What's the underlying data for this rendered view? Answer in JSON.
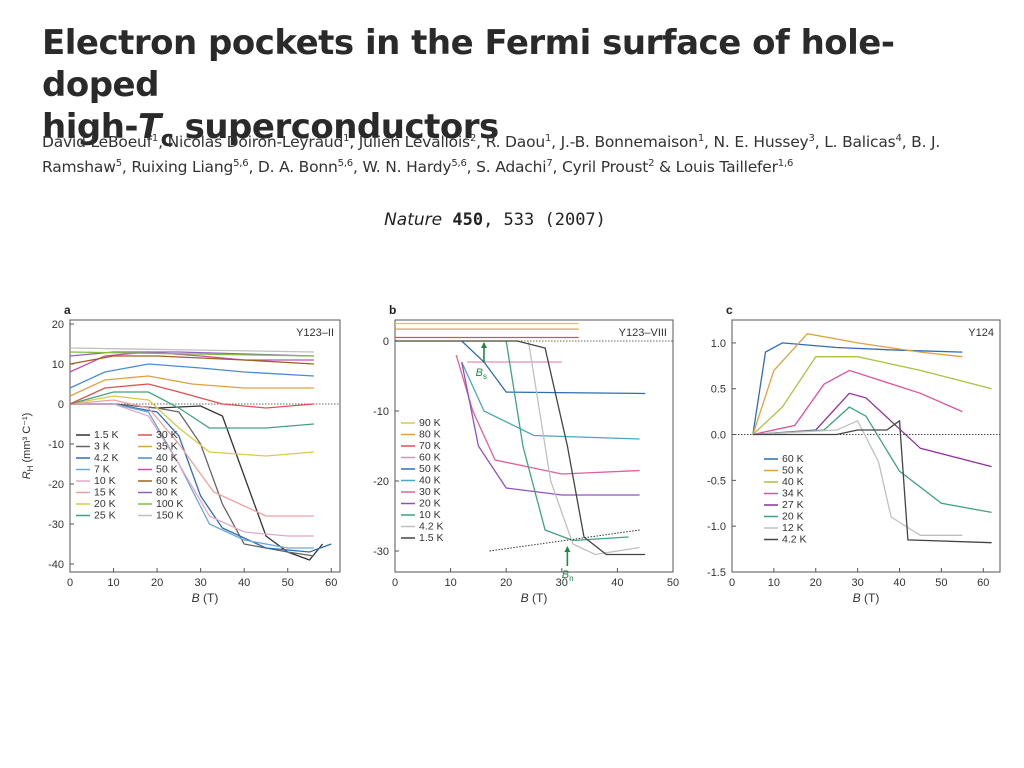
{
  "title": {
    "line1": "Electron pockets in the Fermi surface of hole-doped",
    "line2a": "high-",
    "line2_T": "T",
    "line2_c": "c",
    "line2b": " superconductors"
  },
  "authors": [
    {
      "name": "David LeBoeuf",
      "sup": "1"
    },
    {
      "name": "Nicolas Doiron-Leyraud",
      "sup": "1"
    },
    {
      "name": "Julien Levallois",
      "sup": "2"
    },
    {
      "name": "R. Daou",
      "sup": "1"
    },
    {
      "name": "J.-B. Bonnemaison",
      "sup": "1"
    },
    {
      "name": "N. E. Hussey",
      "sup": "3"
    },
    {
      "name": "L. Balicas",
      "sup": "4"
    },
    {
      "name": "B. J. Ramshaw",
      "sup": "5"
    },
    {
      "name": "Ruixing Liang",
      "sup": "5,6"
    },
    {
      "name": "D. A. Bonn",
      "sup": "5,6"
    },
    {
      "name": "W. N. Hardy",
      "sup": "5,6"
    },
    {
      "name": "S. Adachi",
      "sup": "7"
    },
    {
      "name": "Cyril Proust",
      "sup": "2"
    },
    {
      "name": "Louis Taillefer",
      "sup": "1,6"
    }
  ],
  "citation": {
    "journal": "Nature",
    "volume": "450",
    "rest": ", 533 (2007)"
  },
  "chart_data": [
    {
      "type": "line",
      "panel": "a",
      "sample": "Y123–II",
      "xlabel": "B (T)",
      "ylabel": "R_H (mm³ C⁻¹)",
      "xlim": [
        0,
        62
      ],
      "ylim": [
        -42,
        21
      ],
      "xticks": [
        0,
        10,
        20,
        30,
        40,
        50,
        60
      ],
      "yticks": [
        20,
        10,
        0,
        -10,
        -20,
        -30,
        -40
      ],
      "legend_col1": [
        "1.5 K",
        "3 K",
        "4.2 K",
        "7 K",
        "10 K",
        "15 K",
        "20 K",
        "25 K"
      ],
      "legend_col2": [
        "30 K",
        "35 K",
        "40 K",
        "50 K",
        "60 K",
        "80 K",
        "100 K",
        "150 K"
      ],
      "series": [
        {
          "name": "1.5 K",
          "color": "#333333",
          "points": [
            [
              0,
              0
            ],
            [
              10,
              0
            ],
            [
              20,
              -1
            ],
            [
              30,
              -0.5
            ],
            [
              35,
              -3
            ],
            [
              40,
              -18
            ],
            [
              45,
              -33
            ],
            [
              50,
              -37
            ],
            [
              55,
              -39
            ],
            [
              58,
              -35
            ]
          ]
        },
        {
          "name": "3 K",
          "color": "#666666",
          "points": [
            [
              0,
              0
            ],
            [
              10,
              0
            ],
            [
              20,
              -1
            ],
            [
              25,
              -2
            ],
            [
              30,
              -10
            ],
            [
              35,
              -25
            ],
            [
              40,
              -35
            ],
            [
              50,
              -37
            ],
            [
              56,
              -38
            ]
          ]
        },
        {
          "name": "4.2 K",
          "color": "#2e6db4",
          "points": [
            [
              0,
              0
            ],
            [
              10,
              0
            ],
            [
              20,
              -2
            ],
            [
              25,
              -8
            ],
            [
              30,
              -23
            ],
            [
              35,
              -31
            ],
            [
              45,
              -36
            ],
            [
              55,
              -37
            ],
            [
              60,
              -35
            ]
          ]
        },
        {
          "name": "7 K",
          "color": "#6aa8d8",
          "points": [
            [
              0,
              0
            ],
            [
              10,
              0
            ],
            [
              18,
              -2
            ],
            [
              25,
              -15
            ],
            [
              32,
              -30
            ],
            [
              40,
              -34
            ],
            [
              50,
              -36
            ],
            [
              56,
              -36
            ]
          ]
        },
        {
          "name": "10 K",
          "color": "#e3a8c8",
          "points": [
            [
              0,
              0
            ],
            [
              10,
              0
            ],
            [
              18,
              -3
            ],
            [
              25,
              -15
            ],
            [
              32,
              -28
            ],
            [
              40,
              -32
            ],
            [
              50,
              -33
            ],
            [
              56,
              -33
            ]
          ]
        },
        {
          "name": "15 K",
          "color": "#f0a0a0",
          "points": [
            [
              0,
              0
            ],
            [
              10,
              1
            ],
            [
              18,
              -1
            ],
            [
              25,
              -10
            ],
            [
              33,
              -22
            ],
            [
              45,
              -28
            ],
            [
              56,
              -28
            ]
          ]
        },
        {
          "name": "20 K",
          "color": "#d9c94a",
          "points": [
            [
              0,
              0
            ],
            [
              10,
              2
            ],
            [
              18,
              1
            ],
            [
              25,
              -6
            ],
            [
              32,
              -12
            ],
            [
              45,
              -13
            ],
            [
              56,
              -12
            ]
          ]
        },
        {
          "name": "25 K",
          "color": "#3fa37c",
          "points": [
            [
              0,
              0
            ],
            [
              10,
              3
            ],
            [
              18,
              3
            ],
            [
              25,
              -1
            ],
            [
              32,
              -6
            ],
            [
              45,
              -6
            ],
            [
              56,
              -5
            ]
          ]
        },
        {
          "name": "30 K",
          "color": "#e05050",
          "points": [
            [
              0,
              0
            ],
            [
              8,
              4
            ],
            [
              18,
              5
            ],
            [
              25,
              3
            ],
            [
              35,
              0
            ],
            [
              45,
              -1
            ],
            [
              56,
              0
            ]
          ]
        },
        {
          "name": "35 K",
          "color": "#e0a040",
          "points": [
            [
              0,
              2
            ],
            [
              8,
              6
            ],
            [
              18,
              7
            ],
            [
              28,
              5
            ],
            [
              40,
              4
            ],
            [
              56,
              4
            ]
          ]
        },
        {
          "name": "40 K",
          "color": "#4b8bd4",
          "points": [
            [
              0,
              4
            ],
            [
              8,
              8
            ],
            [
              18,
              10
            ],
            [
              30,
              9
            ],
            [
              40,
              8
            ],
            [
              56,
              7
            ]
          ]
        },
        {
          "name": "50 K",
          "color": "#c050b0",
          "points": [
            [
              0,
              8
            ],
            [
              8,
              12
            ],
            [
              18,
              13
            ],
            [
              30,
              12
            ],
            [
              40,
              11
            ],
            [
              56,
              11
            ]
          ]
        },
        {
          "name": "60 K",
          "color": "#a06020",
          "points": [
            [
              0,
              10
            ],
            [
              10,
              12
            ],
            [
              20,
              12
            ],
            [
              40,
              11
            ],
            [
              56,
              10
            ]
          ]
        },
        {
          "name": "80 K",
          "color": "#9060c0",
          "points": [
            [
              0,
              12
            ],
            [
              10,
              13
            ],
            [
              25,
              13
            ],
            [
              56,
              12
            ]
          ]
        },
        {
          "name": "100 K",
          "color": "#80c040",
          "points": [
            [
              0,
              13
            ],
            [
              56,
              12
            ]
          ]
        },
        {
          "name": "150 K",
          "color": "#c0c0c0",
          "points": [
            [
              0,
              14
            ],
            [
              56,
              13
            ]
          ]
        }
      ]
    },
    {
      "type": "line",
      "panel": "b",
      "sample": "Y123–VIII",
      "xlabel": "B (T)",
      "ylabel": "",
      "xlim": [
        0,
        50
      ],
      "ylim": [
        -33,
        3
      ],
      "xticks": [
        0,
        10,
        20,
        30,
        40,
        50
      ],
      "yticks": [
        0,
        -10,
        -20,
        -30
      ],
      "annotations": [
        "B_s",
        "B_n"
      ],
      "legend": [
        "90 K",
        "80 K",
        "70 K",
        "60 K",
        "50 K",
        "40 K",
        "30 K",
        "20 K",
        "10 K",
        "4.2 K",
        "1.5 K"
      ],
      "series": [
        {
          "name": "90 K",
          "color": "#d9c94a",
          "points": [
            [
              0,
              2.5
            ],
            [
              33,
              2.5
            ]
          ]
        },
        {
          "name": "80 K",
          "color": "#e0a040",
          "points": [
            [
              0,
              1.7
            ],
            [
              33,
              1.7
            ]
          ]
        },
        {
          "name": "70 K",
          "color": "#e05050",
          "points": [
            [
              0,
              0.5
            ],
            [
              33,
              0.5
            ]
          ]
        },
        {
          "name": "60 K",
          "color": "#e38cb8",
          "points": [
            [
              13,
              -3
            ],
            [
              30,
              -3
            ]
          ]
        },
        {
          "name": "50 K",
          "color": "#2e6db4",
          "points": [
            [
              12,
              0
            ],
            [
              16,
              -3
            ],
            [
              20,
              -7.3
            ],
            [
              45,
              -7.5
            ]
          ]
        },
        {
          "name": "40 K",
          "color": "#4aa8c0",
          "points": [
            [
              12,
              -3
            ],
            [
              16,
              -10
            ],
            [
              25,
              -13.5
            ],
            [
              44,
              -14
            ]
          ]
        },
        {
          "name": "30 K",
          "color": "#e060a0",
          "points": [
            [
              11,
              -2
            ],
            [
              14,
              -10
            ],
            [
              18,
              -17
            ],
            [
              30,
              -19
            ],
            [
              44,
              -18.5
            ]
          ]
        },
        {
          "name": "20 K",
          "color": "#9050c0",
          "points": [
            [
              12,
              -3
            ],
            [
              15,
              -15
            ],
            [
              20,
              -21
            ],
            [
              30,
              -22
            ],
            [
              44,
              -22
            ]
          ]
        },
        {
          "name": "10 K",
          "color": "#3fa37c",
          "points": [
            [
              20,
              0
            ],
            [
              23,
              -15
            ],
            [
              27,
              -27
            ],
            [
              32,
              -28.5
            ],
            [
              42,
              -28
            ]
          ]
        },
        {
          "name": "4.2 K",
          "color": "#c0c0c0",
          "points": [
            [
              24,
              0
            ],
            [
              28,
              -20
            ],
            [
              32,
              -29
            ],
            [
              36,
              -30.5
            ],
            [
              44,
              -29.5
            ]
          ]
        },
        {
          "name": "1.5 K",
          "color": "#444444",
          "points": [
            [
              0,
              0
            ],
            [
              22,
              0
            ],
            [
              27,
              -1
            ],
            [
              31,
              -15
            ],
            [
              34,
              -28
            ],
            [
              38,
              -30.5
            ],
            [
              45,
              -30.5
            ]
          ]
        }
      ]
    },
    {
      "type": "line",
      "panel": "c",
      "sample": "Y124",
      "xlabel": "B (T)",
      "ylabel": "",
      "xlim": [
        0,
        64
      ],
      "ylim": [
        -1.5,
        1.25
      ],
      "xticks": [
        0,
        10,
        20,
        30,
        40,
        50,
        60
      ],
      "yticks": [
        1.0,
        0.5,
        0.0,
        -0.5,
        -1.0,
        -1.5
      ],
      "legend": [
        "60 K",
        "50 K",
        "40 K",
        "34 K",
        "27 K",
        "20 K",
        "12 K",
        "4.2 K"
      ],
      "series": [
        {
          "name": "60 K",
          "color": "#2e6db4",
          "points": [
            [
              5,
              0
            ],
            [
              8,
              0.9
            ],
            [
              12,
              1.0
            ],
            [
              25,
              0.95
            ],
            [
              40,
              0.92
            ],
            [
              55,
              0.9
            ]
          ]
        },
        {
          "name": "50 K",
          "color": "#e0a040",
          "points": [
            [
              5,
              0
            ],
            [
              10,
              0.7
            ],
            [
              18,
              1.1
            ],
            [
              30,
              1.0
            ],
            [
              45,
              0.9
            ],
            [
              55,
              0.85
            ]
          ]
        },
        {
          "name": "40 K",
          "color": "#b0c040",
          "points": [
            [
              5,
              0
            ],
            [
              12,
              0.3
            ],
            [
              20,
              0.85
            ],
            [
              30,
              0.85
            ],
            [
              45,
              0.7
            ],
            [
              62,
              0.5
            ]
          ]
        },
        {
          "name": "34 K",
          "color": "#e050a0",
          "points": [
            [
              5,
              0
            ],
            [
              15,
              0.1
            ],
            [
              22,
              0.55
            ],
            [
              28,
              0.7
            ],
            [
              45,
              0.45
            ],
            [
              55,
              0.25
            ]
          ]
        },
        {
          "name": "27 K",
          "color": "#9030a0",
          "points": [
            [
              5,
              0
            ],
            [
              20,
              0.05
            ],
            [
              28,
              0.45
            ],
            [
              32,
              0.4
            ],
            [
              45,
              -0.15
            ],
            [
              62,
              -0.35
            ]
          ]
        },
        {
          "name": "20 K",
          "color": "#3fa37c",
          "points": [
            [
              5,
              0
            ],
            [
              22,
              0.05
            ],
            [
              28,
              0.3
            ],
            [
              32,
              0.2
            ],
            [
              40,
              -0.4
            ],
            [
              50,
              -0.75
            ],
            [
              62,
              -0.85
            ]
          ]
        },
        {
          "name": "12 K",
          "color": "#c0c0c0",
          "points": [
            [
              5,
              0
            ],
            [
              25,
              0.05
            ],
            [
              30,
              0.15
            ],
            [
              35,
              -0.3
            ],
            [
              38,
              -0.9
            ],
            [
              45,
              -1.1
            ],
            [
              55,
              -1.1
            ]
          ]
        },
        {
          "name": "4.2 K",
          "color": "#444444",
          "points": [
            [
              5,
              0
            ],
            [
              25,
              0
            ],
            [
              30,
              0.05
            ],
            [
              37,
              0.05
            ],
            [
              40,
              0.15
            ],
            [
              42,
              -1.15
            ],
            [
              62,
              -1.18
            ]
          ]
        }
      ]
    }
  ]
}
